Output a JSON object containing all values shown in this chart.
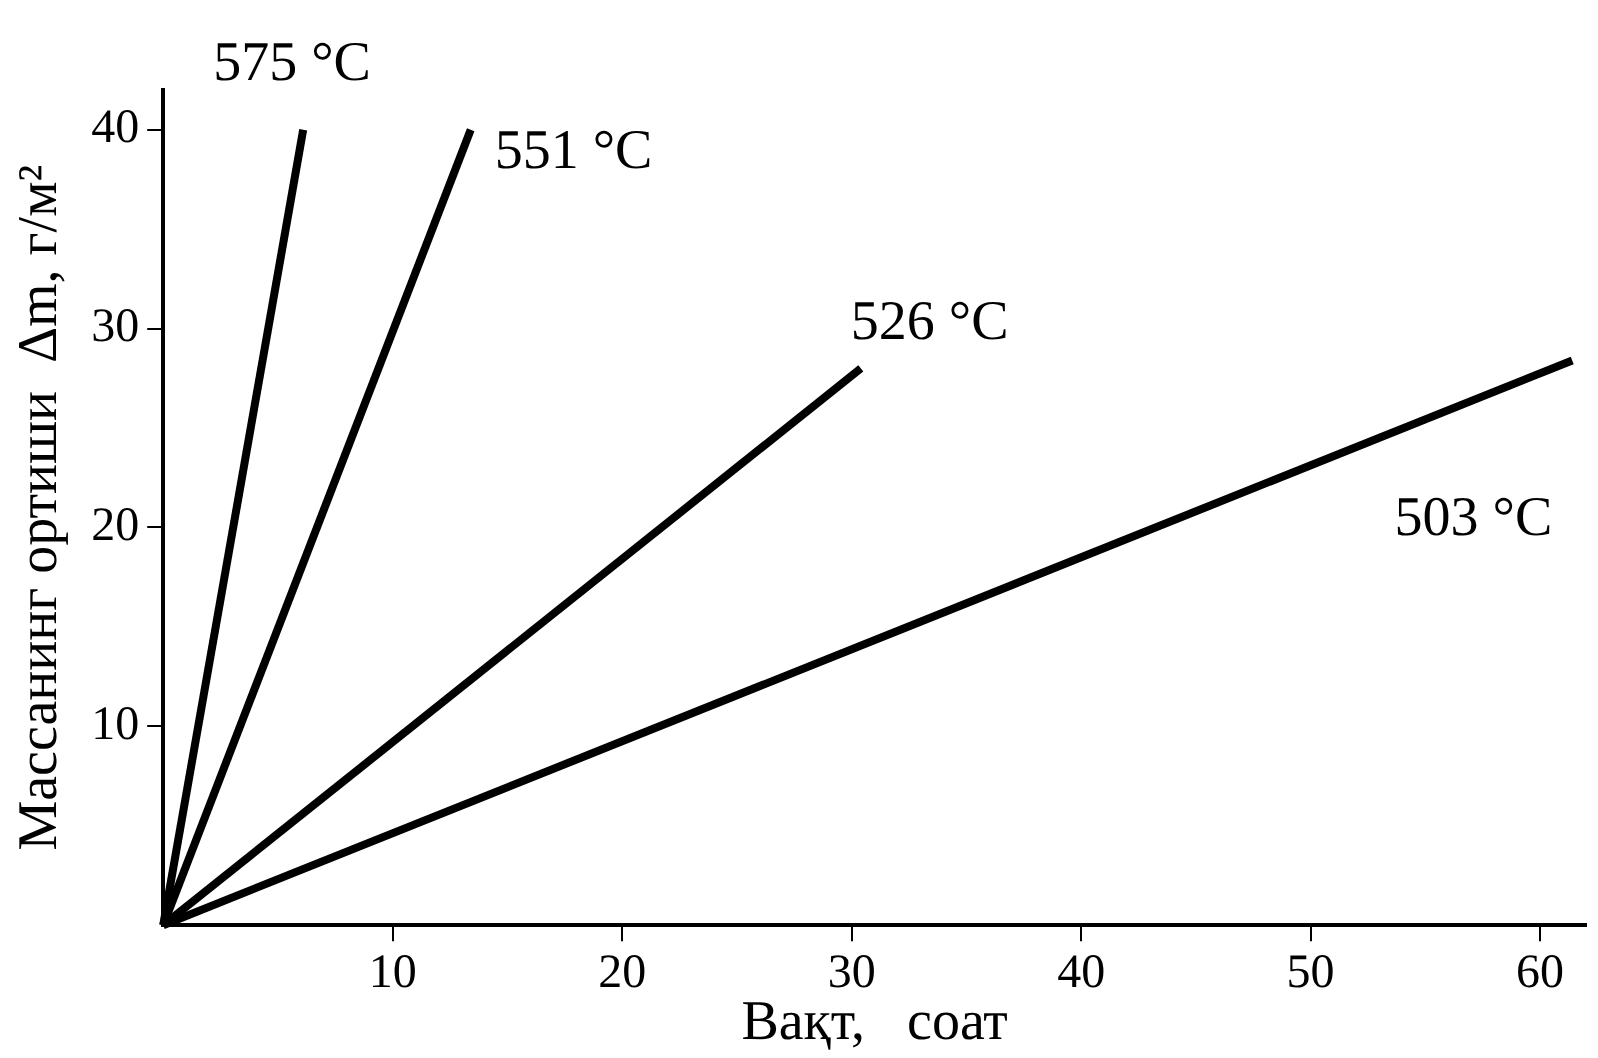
{
  "chart_data": {
    "type": "line",
    "xlabel": "Вақт,   соат",
    "ylabel": "Массанинг ортиши  Δm, г/м²",
    "xlim": [
      0,
      62
    ],
    "ylim": [
      0,
      42
    ],
    "xticks": [
      10,
      20,
      30,
      40,
      50,
      60
    ],
    "yticks": [
      10,
      20,
      30,
      40
    ],
    "grid": false,
    "legend": false,
    "marker": "none",
    "line_style": "solid",
    "series": [
      {
        "name": "575 °C",
        "color": "#000000",
        "x": [
          0,
          6.1
        ],
        "values": [
          0,
          40
        ]
      },
      {
        "name": "551 °C",
        "color": "#000000",
        "x": [
          0,
          13.4
        ],
        "values": [
          0,
          40
        ]
      },
      {
        "name": "526 °C",
        "color": "#000000",
        "x": [
          0,
          30.4
        ],
        "values": [
          0,
          28
        ]
      },
      {
        "name": "503 °C",
        "color": "#000000",
        "x": [
          0,
          61.4
        ],
        "values": [
          0,
          28.4
        ]
      }
    ]
  }
}
